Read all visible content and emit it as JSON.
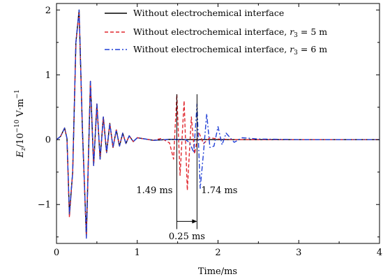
{
  "chart_data": {
    "type": "line",
    "xlabel": "Time/ms",
    "ylabel": "E_z/10^-10 V·m^-1",
    "ylabel_parts": {
      "var": "E",
      "sub": "z",
      "mid": "/10",
      "exp": "−10",
      "unit": " V·m",
      "unit_exp": "−1"
    },
    "xlim": [
      0,
      4
    ],
    "ylim": [
      -1.6,
      2.1
    ],
    "xticks": [
      "0",
      "1",
      "2",
      "3",
      "4"
    ],
    "xtick_values": [
      0,
      1,
      2,
      3,
      4
    ],
    "yticks": [
      "−1",
      "0",
      "1",
      "2"
    ],
    "ytick_values": [
      -1,
      0,
      1,
      2
    ],
    "grid": false,
    "legend_position": "top-right",
    "series": [
      {
        "name": "Without electrochemical interface",
        "name_suffix": "",
        "color": "#000000",
        "style": "solid",
        "x": [
          0,
          0.05,
          0.1,
          0.13,
          0.16,
          0.2,
          0.24,
          0.28,
          0.32,
          0.37,
          0.42,
          0.46,
          0.5,
          0.54,
          0.58,
          0.62,
          0.66,
          0.7,
          0.74,
          0.78,
          0.82,
          0.86,
          0.9,
          0.95,
          1.0,
          1.1,
          1.2,
          1.4,
          1.6,
          1.8,
          2.0,
          2.2,
          2.5,
          3.0,
          3.5,
          4.0
        ],
        "y": [
          0,
          0.05,
          0.18,
          0.02,
          -1.15,
          -0.5,
          1.5,
          2.0,
          0.2,
          -1.5,
          0.9,
          -0.4,
          0.55,
          -0.3,
          0.35,
          -0.2,
          0.25,
          -0.12,
          0.15,
          -0.1,
          0.1,
          -0.06,
          0.06,
          -0.03,
          0.03,
          0.01,
          -0.01,
          0.005,
          0,
          0,
          0,
          0,
          0,
          0,
          0,
          0
        ]
      },
      {
        "name": "Without electrochemical interface, ",
        "name_suffix": "r3 = 5 m",
        "r_label": {
          "var": "r",
          "sub": "3",
          "rest": " = 5 m"
        },
        "color": "#e0262d",
        "style": "dashed",
        "x": [
          0,
          0.05,
          0.1,
          0.13,
          0.16,
          0.2,
          0.24,
          0.28,
          0.32,
          0.37,
          0.42,
          0.46,
          0.5,
          0.54,
          0.58,
          0.62,
          0.66,
          0.7,
          0.74,
          0.78,
          0.82,
          0.86,
          0.9,
          0.95,
          1.0,
          1.1,
          1.2,
          1.3,
          1.4,
          1.45,
          1.49,
          1.53,
          1.58,
          1.62,
          1.67,
          1.71,
          1.76,
          1.82,
          1.9,
          2.0,
          2.2,
          2.5,
          3.0,
          3.5,
          4.0
        ],
        "y": [
          0,
          0.05,
          0.18,
          0.02,
          -1.2,
          -0.5,
          1.5,
          1.95,
          0.2,
          -1.5,
          0.9,
          -0.4,
          0.55,
          -0.3,
          0.35,
          -0.2,
          0.25,
          -0.12,
          0.15,
          -0.1,
          0.1,
          -0.06,
          0.06,
          -0.03,
          0.03,
          0.01,
          -0.01,
          0.02,
          -0.05,
          -0.3,
          0.7,
          -0.55,
          0.6,
          -0.78,
          0.35,
          -0.22,
          0.12,
          -0.06,
          0.03,
          0.01,
          0,
          0,
          0,
          0,
          0
        ]
      },
      {
        "name": "Without electrochemical interface, ",
        "name_suffix": "r3 = 6 m",
        "r_label": {
          "var": "r",
          "sub": "3",
          "rest": " = 6 m"
        },
        "color": "#1f3fd6",
        "style": "dashdot",
        "x": [
          0,
          0.05,
          0.1,
          0.13,
          0.16,
          0.2,
          0.24,
          0.28,
          0.32,
          0.37,
          0.42,
          0.46,
          0.5,
          0.54,
          0.58,
          0.62,
          0.66,
          0.7,
          0.74,
          0.78,
          0.82,
          0.86,
          0.9,
          0.95,
          1.0,
          1.1,
          1.2,
          1.4,
          1.6,
          1.65,
          1.7,
          1.74,
          1.78,
          1.82,
          1.86,
          1.9,
          1.95,
          2.0,
          2.05,
          2.1,
          2.2,
          2.3,
          2.5,
          3.0,
          3.5,
          4.0
        ],
        "y": [
          0,
          0.05,
          0.18,
          0.02,
          -1.15,
          -0.5,
          1.5,
          2.0,
          0.2,
          -1.52,
          0.9,
          -0.4,
          0.55,
          -0.3,
          0.35,
          -0.2,
          0.25,
          -0.12,
          0.15,
          -0.1,
          0.1,
          -0.06,
          0.06,
          -0.03,
          0.03,
          0.01,
          -0.01,
          0.005,
          0,
          -0.05,
          -0.2,
          0.55,
          -0.75,
          -0.2,
          0.4,
          -0.12,
          -0.1,
          0.2,
          -0.08,
          0.1,
          -0.04,
          0.03,
          0.01,
          0,
          0,
          0
        ]
      }
    ],
    "annotations": {
      "left_time": "1.49 ms",
      "right_time": "1.74 ms",
      "delta": "0.25 ms",
      "left_x": 1.49,
      "right_x": 1.74
    }
  }
}
